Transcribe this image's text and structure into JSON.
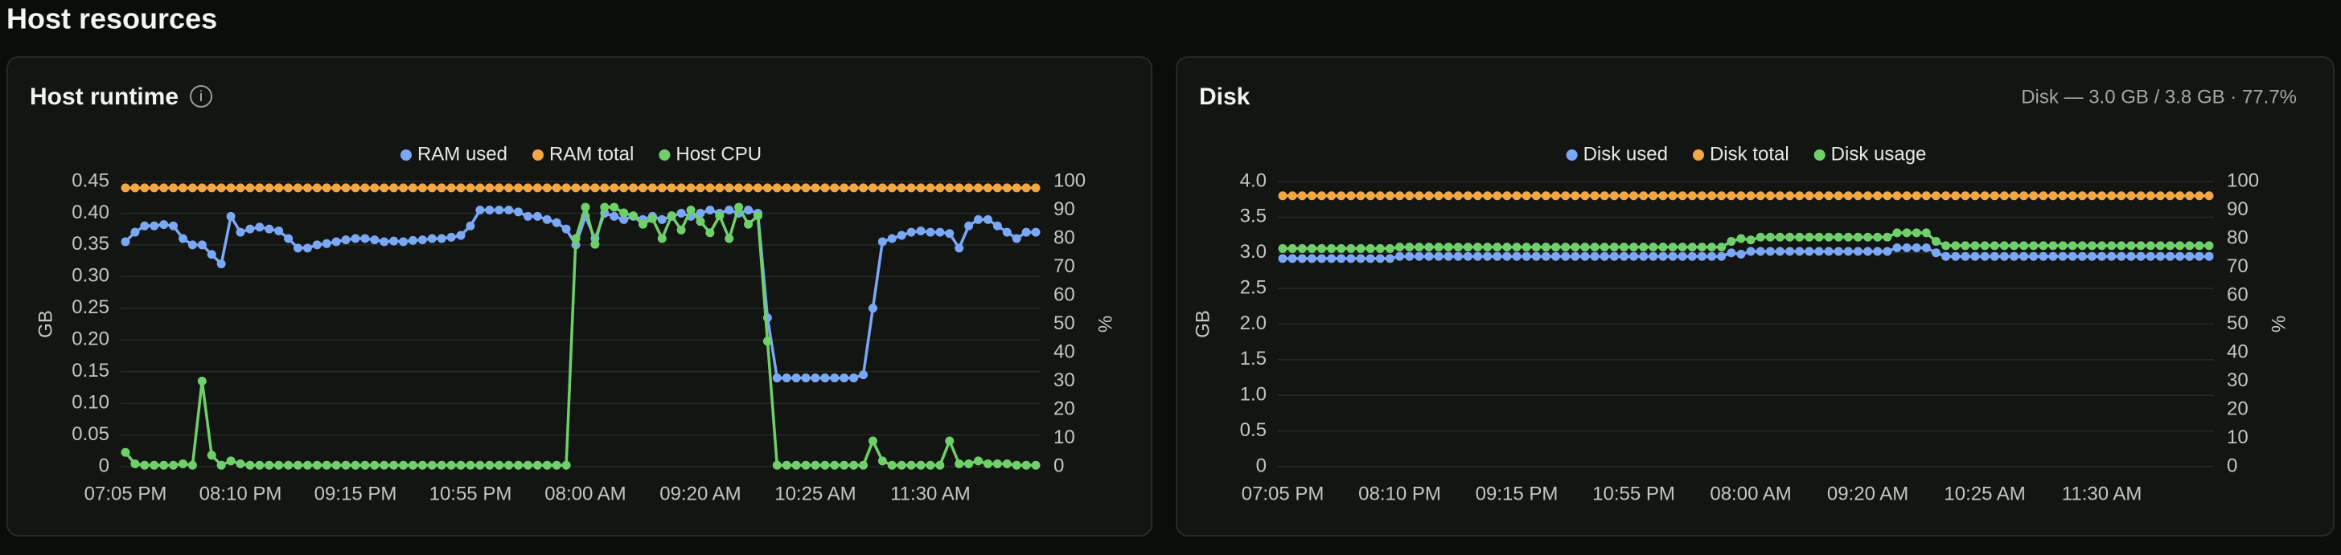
{
  "page_title": "Host resources",
  "chart_data": [
    {
      "type": "line",
      "title": "Host runtime",
      "info": "i",
      "ylabel": "GB",
      "y2label": "%",
      "grid": true,
      "categories": [
        "07:05 PM",
        null,
        null,
        null,
        null,
        null,
        null,
        null,
        null,
        null,
        null,
        null,
        "08:10 PM",
        null,
        null,
        null,
        null,
        null,
        null,
        null,
        null,
        null,
        null,
        null,
        "09:15 PM",
        null,
        null,
        null,
        null,
        null,
        null,
        null,
        null,
        null,
        null,
        null,
        "10:55 PM",
        null,
        null,
        null,
        null,
        null,
        null,
        null,
        null,
        null,
        null,
        null,
        "08:00 AM",
        null,
        null,
        null,
        null,
        null,
        null,
        null,
        null,
        null,
        null,
        null,
        "09:20 AM",
        null,
        null,
        null,
        null,
        null,
        null,
        null,
        null,
        null,
        null,
        null,
        "10:25 AM",
        null,
        null,
        null,
        null,
        null,
        null,
        null,
        null,
        null,
        null,
        null,
        "11:30 AM",
        null,
        null,
        null,
        null,
        null,
        null,
        null,
        null,
        null,
        null,
        null
      ],
      "ylim": [
        0,
        0.45
      ],
      "yticks": [
        0,
        0.05,
        {
          "value": 0.1,
          "label": "0.10"
        },
        0.15,
        {
          "value": 0.2,
          "label": "0.20"
        },
        0.25,
        {
          "value": 0.3,
          "label": "0.30"
        },
        0.35,
        {
          "value": 0.4,
          "label": "0.40"
        },
        0.45
      ],
      "y2lim": [
        0,
        100
      ],
      "y2ticks": [
        0,
        10,
        20,
        30,
        40,
        50,
        60,
        70,
        80,
        90,
        100
      ],
      "series": [
        {
          "name": "RAM used",
          "color": "#7aa7f6",
          "values": [
            0.355,
            0.37,
            0.38,
            0.38,
            0.382,
            0.38,
            0.36,
            0.35,
            0.35,
            0.335,
            0.32,
            0.395,
            0.37,
            0.375,
            0.378,
            0.375,
            0.372,
            0.36,
            0.345,
            0.345,
            0.35,
            0.352,
            0.355,
            0.358,
            0.36,
            0.36,
            0.358,
            0.355,
            0.356,
            0.355,
            0.357,
            0.358,
            0.36,
            0.36,
            0.362,
            0.365,
            0.38,
            0.405,
            0.405,
            0.405,
            0.405,
            0.402,
            0.395,
            0.395,
            0.39,
            0.385,
            0.375,
            0.35,
            0.395,
            0.36,
            0.4,
            0.395,
            0.39,
            0.395,
            0.39,
            0.395,
            0.39,
            0.395,
            0.4,
            0.395,
            0.4,
            0.405,
            0.4,
            0.405,
            0.4,
            0.405,
            0.4,
            0.235,
            0.14,
            0.14,
            0.14,
            0.14,
            0.14,
            0.14,
            0.14,
            0.14,
            0.14,
            0.145,
            0.25,
            0.355,
            0.36,
            0.365,
            0.37,
            0.372,
            0.37,
            0.37,
            0.368,
            0.345,
            0.38,
            0.39,
            0.39,
            0.38,
            0.37,
            0.36,
            0.37,
            0.37
          ]
        },
        {
          "name": "RAM total",
          "color": "#f2a744",
          "values": [
            0.44,
            0.44,
            0.44,
            0.44,
            0.44,
            0.44,
            0.44,
            0.44,
            0.44,
            0.44,
            0.44,
            0.44,
            0.44,
            0.44,
            0.44,
            0.44,
            0.44,
            0.44,
            0.44,
            0.44,
            0.44,
            0.44,
            0.44,
            0.44,
            0.44,
            0.44,
            0.44,
            0.44,
            0.44,
            0.44,
            0.44,
            0.44,
            0.44,
            0.44,
            0.44,
            0.44,
            0.44,
            0.44,
            0.44,
            0.44,
            0.44,
            0.44,
            0.44,
            0.44,
            0.44,
            0.44,
            0.44,
            0.44,
            0.44,
            0.44,
            0.44,
            0.44,
            0.44,
            0.44,
            0.44,
            0.44,
            0.44,
            0.44,
            0.44,
            0.44,
            0.44,
            0.44,
            0.44,
            0.44,
            0.44,
            0.44,
            0.44,
            0.44,
            0.44,
            0.44,
            0.44,
            0.44,
            0.44,
            0.44,
            0.44,
            0.44,
            0.44,
            0.44,
            0.44,
            0.44,
            0.44,
            0.44,
            0.44,
            0.44,
            0.44,
            0.44,
            0.44,
            0.44,
            0.44,
            0.44,
            0.44,
            0.44,
            0.44,
            0.44,
            0.44,
            0.44
          ]
        },
        {
          "name": "Host CPU",
          "color": "#6fd06a",
          "axis": "y2",
          "values": [
            5,
            1,
            0.5,
            0.5,
            0.5,
            0.5,
            1,
            0.5,
            30,
            4,
            0.5,
            2,
            1,
            0.5,
            0.5,
            0.5,
            0.5,
            0.5,
            0.5,
            0.5,
            0.5,
            0.5,
            0.5,
            0.5,
            0.5,
            0.5,
            0.5,
            0.5,
            0.5,
            0.5,
            0.5,
            0.5,
            0.5,
            0.5,
            0.5,
            0.5,
            0.5,
            0.5,
            0.5,
            0.5,
            0.5,
            0.5,
            0.5,
            0.5,
            0.5,
            0.5,
            0.5,
            80,
            91,
            78,
            91,
            91,
            89,
            88,
            85,
            87,
            80,
            88,
            83,
            90,
            86,
            82,
            88,
            80,
            91,
            85,
            88,
            44,
            0.5,
            0.5,
            0.5,
            0.5,
            0.5,
            0.5,
            0.5,
            0.5,
            0.5,
            0.5,
            9,
            2,
            0.5,
            0.5,
            0.5,
            0.5,
            0.5,
            0.5,
            9,
            1,
            1,
            2,
            1,
            1,
            1,
            0.5,
            0.5,
            0.5
          ]
        }
      ]
    },
    {
      "type": "line",
      "title": "Disk",
      "subtitle": "Disk — 3.0 GB / 3.8 GB · 77.7%",
      "ylabel": "GB",
      "y2label": "%",
      "grid": true,
      "categories": [
        "07:05 PM",
        null,
        null,
        null,
        null,
        null,
        null,
        null,
        null,
        null,
        null,
        null,
        "08:10 PM",
        null,
        null,
        null,
        null,
        null,
        null,
        null,
        null,
        null,
        null,
        null,
        "09:15 PM",
        null,
        null,
        null,
        null,
        null,
        null,
        null,
        null,
        null,
        null,
        null,
        "10:55 PM",
        null,
        null,
        null,
        null,
        null,
        null,
        null,
        null,
        null,
        null,
        null,
        "08:00 AM",
        null,
        null,
        null,
        null,
        null,
        null,
        null,
        null,
        null,
        null,
        null,
        "09:20 AM",
        null,
        null,
        null,
        null,
        null,
        null,
        null,
        null,
        null,
        null,
        null,
        "10:25 AM",
        null,
        null,
        null,
        null,
        null,
        null,
        null,
        null,
        null,
        null,
        null,
        "11:30 AM",
        null,
        null,
        null,
        null,
        null,
        null,
        null,
        null,
        null,
        null,
        null
      ],
      "ylim": [
        0,
        4
      ],
      "yticks": [
        0,
        0.5,
        {
          "value": 1,
          "label": "1.0"
        },
        1.5,
        {
          "value": 2,
          "label": "2.0"
        },
        2.5,
        {
          "value": 3,
          "label": "3.0"
        },
        3.5,
        {
          "value": 4,
          "label": "4.0"
        }
      ],
      "y2lim": [
        0,
        100
      ],
      "y2ticks": [
        0,
        10,
        20,
        30,
        40,
        50,
        60,
        70,
        80,
        90,
        100
      ],
      "series": [
        {
          "name": "Disk used",
          "color": "#7aa7f6",
          "values": [
            2.92,
            2.92,
            2.92,
            2.92,
            2.92,
            2.92,
            2.92,
            2.92,
            2.92,
            2.92,
            2.92,
            2.92,
            2.95,
            2.95,
            2.95,
            2.95,
            2.95,
            2.95,
            2.95,
            2.95,
            2.95,
            2.95,
            2.95,
            2.95,
            2.95,
            2.95,
            2.95,
            2.95,
            2.95,
            2.95,
            2.95,
            2.95,
            2.95,
            2.95,
            2.95,
            2.95,
            2.95,
            2.95,
            2.95,
            2.95,
            2.95,
            2.95,
            2.95,
            2.95,
            2.95,
            2.95,
            3.0,
            2.98,
            3.02,
            3.02,
            3.02,
            3.02,
            3.02,
            3.02,
            3.02,
            3.02,
            3.02,
            3.02,
            3.02,
            3.02,
            3.02,
            3.02,
            3.02,
            3.07,
            3.07,
            3.07,
            3.07,
            3.0,
            2.95,
            2.95,
            2.95,
            2.95,
            2.95,
            2.95,
            2.95,
            2.95,
            2.95,
            2.95,
            2.95,
            2.95,
            2.95,
            2.95,
            2.95,
            2.95,
            2.95,
            2.95,
            2.95,
            2.95,
            2.95,
            2.95,
            2.95,
            2.95,
            2.95,
            2.95,
            2.95,
            2.95
          ]
        },
        {
          "name": "Disk total",
          "color": "#f2a744",
          "values": [
            3.8,
            3.8,
            3.8,
            3.8,
            3.8,
            3.8,
            3.8,
            3.8,
            3.8,
            3.8,
            3.8,
            3.8,
            3.8,
            3.8,
            3.8,
            3.8,
            3.8,
            3.8,
            3.8,
            3.8,
            3.8,
            3.8,
            3.8,
            3.8,
            3.8,
            3.8,
            3.8,
            3.8,
            3.8,
            3.8,
            3.8,
            3.8,
            3.8,
            3.8,
            3.8,
            3.8,
            3.8,
            3.8,
            3.8,
            3.8,
            3.8,
            3.8,
            3.8,
            3.8,
            3.8,
            3.8,
            3.8,
            3.8,
            3.8,
            3.8,
            3.8,
            3.8,
            3.8,
            3.8,
            3.8,
            3.8,
            3.8,
            3.8,
            3.8,
            3.8,
            3.8,
            3.8,
            3.8,
            3.8,
            3.8,
            3.8,
            3.8,
            3.8,
            3.8,
            3.8,
            3.8,
            3.8,
            3.8,
            3.8,
            3.8,
            3.8,
            3.8,
            3.8,
            3.8,
            3.8,
            3.8,
            3.8,
            3.8,
            3.8,
            3.8,
            3.8,
            3.8,
            3.8,
            3.8,
            3.8,
            3.8,
            3.8,
            3.8,
            3.8,
            3.8,
            3.8
          ]
        },
        {
          "name": "Disk usage",
          "color": "#6fd06a",
          "axis": "y2",
          "values": [
            76.5,
            76.5,
            76.5,
            76.5,
            76.5,
            76.5,
            76.5,
            76.5,
            76.5,
            76.5,
            76.5,
            76.5,
            77,
            77,
            77,
            77,
            77,
            77,
            77,
            77,
            77,
            77,
            77,
            77,
            77,
            77,
            77,
            77,
            77,
            77,
            77,
            77,
            77,
            77,
            77,
            77,
            77,
            77,
            77,
            77,
            77,
            77,
            77,
            77,
            77,
            77,
            79,
            80,
            79.5,
            80.5,
            80.5,
            80.5,
            80.5,
            80.5,
            80.5,
            80.5,
            80.5,
            80.5,
            80.5,
            80.5,
            80.5,
            80.5,
            80.5,
            82,
            82,
            82,
            82,
            79,
            77.5,
            77.5,
            77.5,
            77.5,
            77.5,
            77.5,
            77.5,
            77.5,
            77.5,
            77.5,
            77.5,
            77.5,
            77.5,
            77.5,
            77.5,
            77.5,
            77.5,
            77.5,
            77.5,
            77.5,
            77.5,
            77.5,
            77.5,
            77.5,
            77.5,
            77.5,
            77.5,
            77.5
          ]
        }
      ]
    }
  ]
}
